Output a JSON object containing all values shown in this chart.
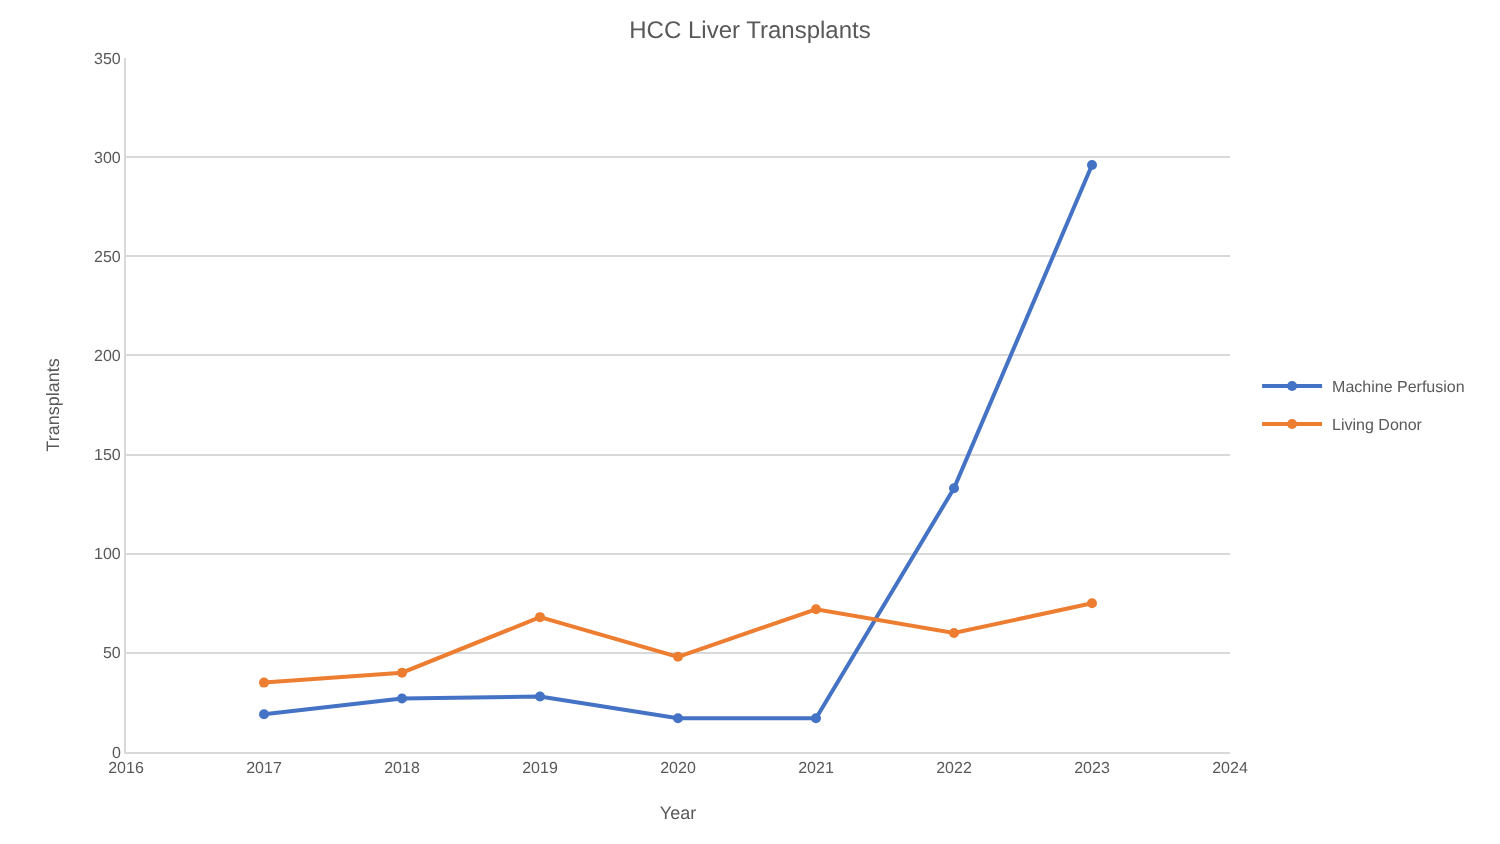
{
  "chart_data": {
    "type": "line",
    "title": "HCC Liver Transplants",
    "xlabel": "Year",
    "ylabel": "Transplants",
    "x": [
      2017,
      2018,
      2019,
      2020,
      2021,
      2022,
      2023
    ],
    "series": [
      {
        "name": "Machine Perfusion",
        "color": "#4472c4",
        "values": [
          19,
          27,
          28,
          17,
          17,
          133,
          296
        ]
      },
      {
        "name": "Living Donor",
        "color": "#ed7d31",
        "values": [
          35,
          40,
          68,
          48,
          72,
          60,
          75
        ]
      }
    ],
    "xlim": [
      2016,
      2024
    ],
    "xticks": [
      2016,
      2017,
      2018,
      2019,
      2020,
      2021,
      2022,
      2023,
      2024
    ],
    "ylim": [
      0,
      350
    ],
    "yticks": [
      0,
      50,
      100,
      150,
      200,
      250,
      300,
      350
    ],
    "grid": "y",
    "legend": "right",
    "marker": "circle",
    "line_style": "solid"
  }
}
